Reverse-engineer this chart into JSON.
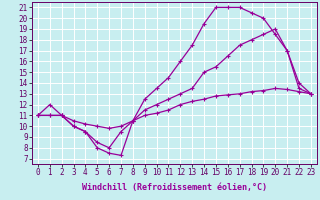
{
  "background_color": "#c8eef0",
  "grid_color": "#ffffff",
  "line_color": "#990099",
  "marker": "+",
  "marker_size": 3,
  "marker_linewidth": 0.8,
  "linewidth": 0.9,
  "xlabel": "Windchill (Refroidissement éolien,°C)",
  "xlabel_fontsize": 6,
  "xlim": [
    -0.5,
    23.5
  ],
  "ylim": [
    6.5,
    21.5
  ],
  "yticks": [
    7,
    8,
    9,
    10,
    11,
    12,
    13,
    14,
    15,
    16,
    17,
    18,
    19,
    20,
    21
  ],
  "xticks": [
    0,
    1,
    2,
    3,
    4,
    5,
    6,
    7,
    8,
    9,
    10,
    11,
    12,
    13,
    14,
    15,
    16,
    17,
    18,
    19,
    20,
    21,
    22,
    23
  ],
  "curves": [
    {
      "x": [
        0,
        1,
        2,
        3,
        4,
        5,
        6,
        7,
        8,
        9,
        10,
        11,
        12,
        13,
        14,
        15,
        16,
        17,
        18,
        19,
        20,
        21,
        22,
        23
      ],
      "y": [
        11,
        12,
        11,
        10,
        9.5,
        8.0,
        7.5,
        7.3,
        10.5,
        12.5,
        13.5,
        14.5,
        16,
        17.5,
        19.5,
        21,
        21,
        21,
        20.5,
        20,
        18.5,
        17,
        14,
        13
      ]
    },
    {
      "x": [
        0,
        1,
        2,
        3,
        4,
        5,
        6,
        7,
        8,
        9,
        10,
        11,
        12,
        13,
        14,
        15,
        16,
        17,
        18,
        19,
        20,
        21,
        22,
        23
      ],
      "y": [
        11,
        11,
        11,
        10,
        9.5,
        8.5,
        8.0,
        9.5,
        10.5,
        11.5,
        12,
        12.5,
        13,
        13.5,
        15,
        15.5,
        16.5,
        17.5,
        18,
        18.5,
        19,
        17,
        13.5,
        13
      ]
    },
    {
      "x": [
        0,
        1,
        2,
        3,
        4,
        5,
        6,
        7,
        8,
        9,
        10,
        11,
        12,
        13,
        14,
        15,
        16,
        17,
        18,
        19,
        20,
        21,
        22,
        23
      ],
      "y": [
        11,
        11,
        11,
        10.5,
        10.2,
        10,
        9.8,
        10,
        10.5,
        11,
        11.2,
        11.5,
        12,
        12.3,
        12.5,
        12.8,
        12.9,
        13,
        13.2,
        13.3,
        13.5,
        13.4,
        13.2,
        13
      ]
    }
  ]
}
